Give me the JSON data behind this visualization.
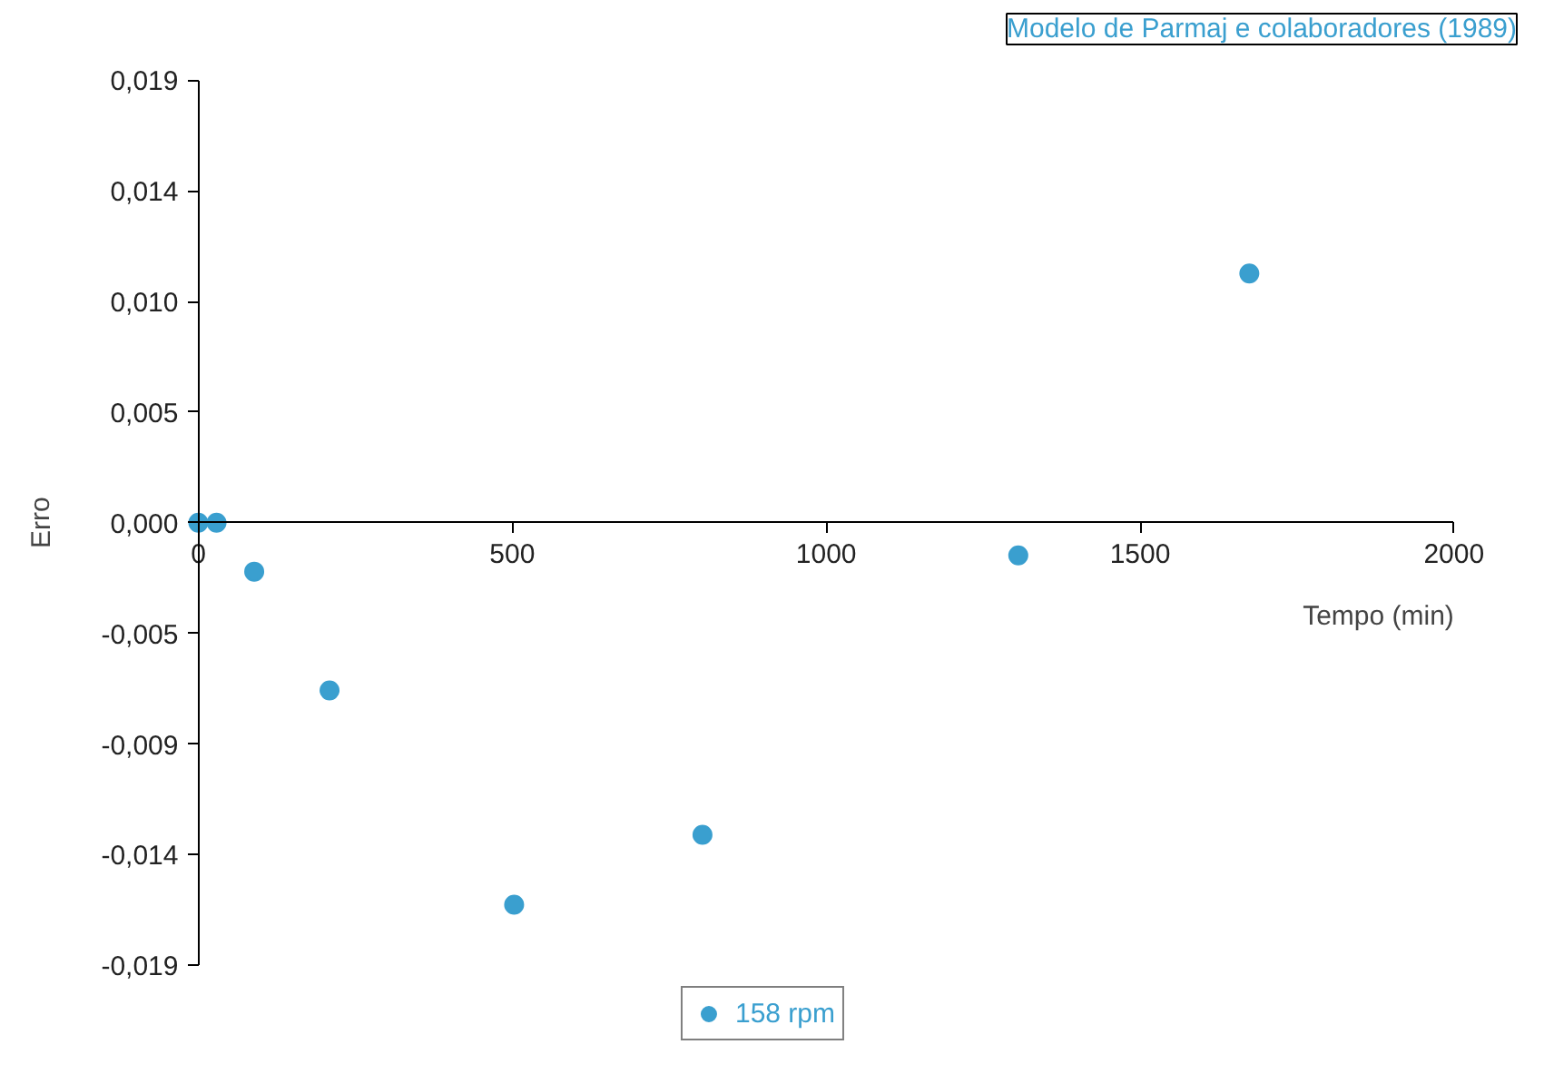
{
  "chart_data": {
    "type": "scatter",
    "title": "Modelo de Parmaj e colaboradores (1989)",
    "xlabel": "Tempo (min)",
    "ylabel": "Erro",
    "x": [
      0,
      29,
      89,
      209,
      503,
      803,
      1306,
      1674
    ],
    "series": [
      {
        "name": "158 rpm",
        "color": "#3a9fcf",
        "values": [
          0.0,
          0.0,
          -0.0021,
          -0.0072,
          -0.0164,
          -0.0134,
          -0.0014,
          0.0107
        ]
      }
    ],
    "xlim": [
      0,
      2000
    ],
    "xticks": [
      0,
      500,
      1000,
      1500,
      2000
    ],
    "ylim": [
      -0.019,
      0.019
    ],
    "yticks": [
      {
        "value": -0.019,
        "label": "-0,019"
      },
      {
        "value": -0.01425,
        "label": "-0,014"
      },
      {
        "value": -0.0095,
        "label": "-0,009"
      },
      {
        "value": -0.00475,
        "label": "-0,005"
      },
      {
        "value": 0,
        "label": "0,000"
      },
      {
        "value": 0.00475,
        "label": "0,005"
      },
      {
        "value": 0.0095,
        "label": "0,010"
      },
      {
        "value": 0.01425,
        "label": "0,014"
      },
      {
        "value": 0.019,
        "label": "0,019"
      }
    ],
    "grid": false,
    "legend": "bottom",
    "marker": "circle"
  }
}
